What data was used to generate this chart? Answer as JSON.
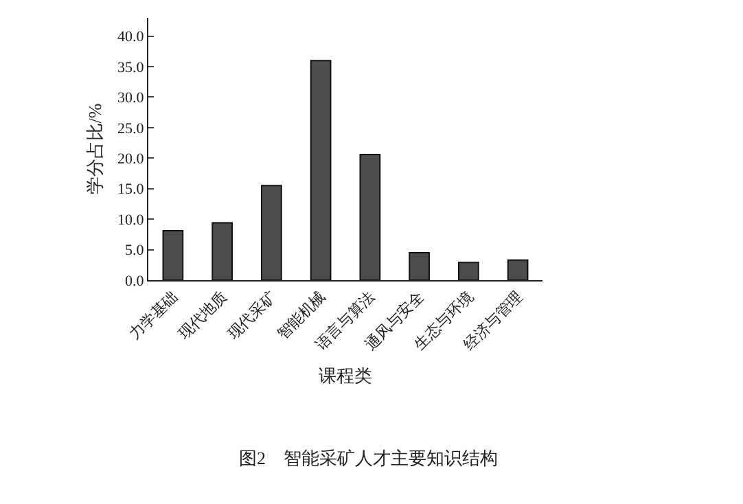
{
  "chart_data": {
    "type": "bar",
    "categories": [
      "力学基础",
      "现代地质",
      "现代采矿",
      "智能机械",
      "语言与算法",
      "通风与安全",
      "生态与环境",
      "经济与管理"
    ],
    "values": [
      8.1,
      9.4,
      15.5,
      36.0,
      20.6,
      4.5,
      2.9,
      3.3
    ],
    "color": "#4d4d4d",
    "xlabel": "课程类",
    "ylabel": "学分占比/%",
    "ylim": [
      0,
      43
    ],
    "yticks": [
      {
        "value": 0,
        "label": "0.0"
      },
      {
        "value": 5,
        "label": "5.0"
      },
      {
        "value": 10,
        "label": "10.0"
      },
      {
        "value": 15,
        "label": "15.0"
      },
      {
        "value": 20,
        "label": "20.0"
      },
      {
        "value": 25,
        "label": "25.0"
      },
      {
        "value": 30,
        "label": "30.0"
      },
      {
        "value": 35,
        "label": "35.0"
      },
      {
        "value": 40,
        "label": "40.0"
      }
    ],
    "grid": false,
    "annotations": [
      "图2　智能采矿人才主要知识结构"
    ]
  }
}
